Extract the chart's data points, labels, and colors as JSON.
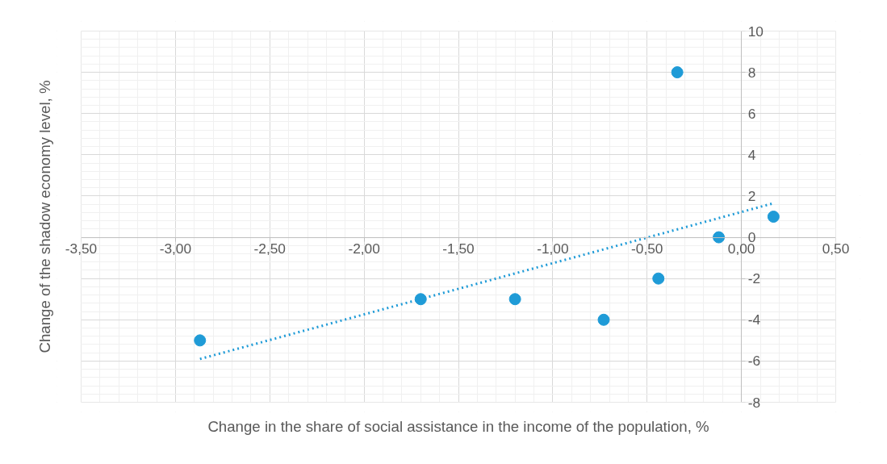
{
  "chart_data": {
    "type": "scatter",
    "xlabel": "Change in the share of social assistance in the income of the population, %",
    "ylabel": "Change of the shadow economy level, %",
    "xlim": [
      -3.5,
      0.5
    ],
    "ylim": [
      -8,
      10
    ],
    "xticks": [
      {
        "value": -3.5,
        "label": "-3,50"
      },
      {
        "value": -3.0,
        "label": "-3,00"
      },
      {
        "value": -2.5,
        "label": "-2,50"
      },
      {
        "value": -2.0,
        "label": "-2,00"
      },
      {
        "value": -1.5,
        "label": "-1,50"
      },
      {
        "value": -1.0,
        "label": "-1,00"
      },
      {
        "value": -0.5,
        "label": "-0,50"
      },
      {
        "value": 0.0,
        "label": "0,00"
      },
      {
        "value": 0.5,
        "label": "0,50"
      }
    ],
    "yticks": [
      -8,
      -6,
      -4,
      -2,
      0,
      2,
      4,
      6,
      8,
      10
    ],
    "grid": true,
    "marker": "circle",
    "series": [
      {
        "color": "#1f9bd7",
        "x": [
          -2.87,
          -1.7,
          -1.2,
          -0.73,
          -0.44,
          -0.34,
          -0.12,
          0.17
        ],
        "values": [
          -5,
          -3,
          -3,
          -4,
          -2,
          8,
          0,
          1
        ]
      },
      {
        "type": "line",
        "color": "#1f9bd7",
        "line_style": "dotted",
        "marker": "none",
        "x": [
          -2.87,
          0.17
        ],
        "values": [
          -5.9,
          1.65
        ]
      }
    ]
  }
}
